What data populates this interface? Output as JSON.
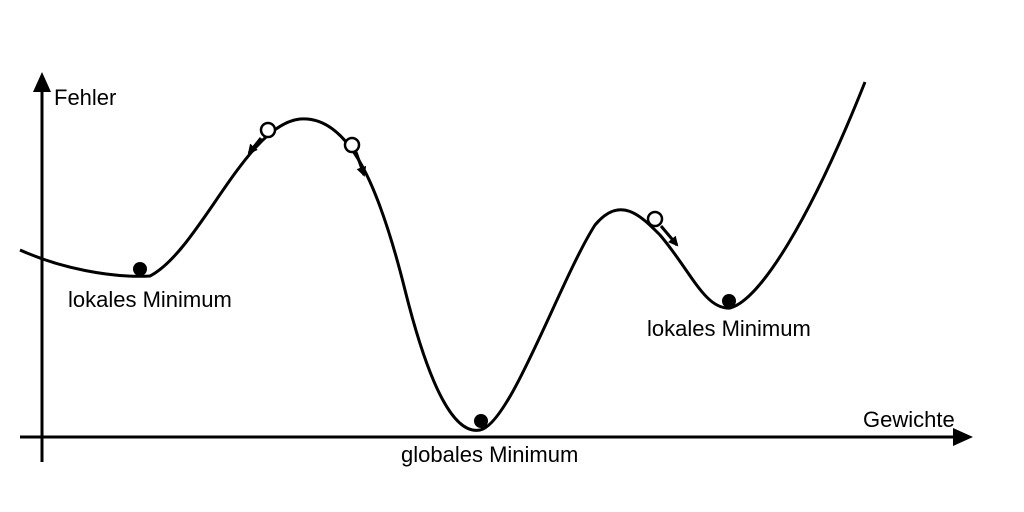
{
  "axes": {
    "y_label": "Fehler",
    "x_label": "Gewichte"
  },
  "minima": {
    "left_label": "lokales Minimum",
    "global_label": "globales Minimum",
    "right_label": "lokales Minimum"
  },
  "colors": {
    "stroke": "#000000",
    "background": "#ffffff"
  }
}
